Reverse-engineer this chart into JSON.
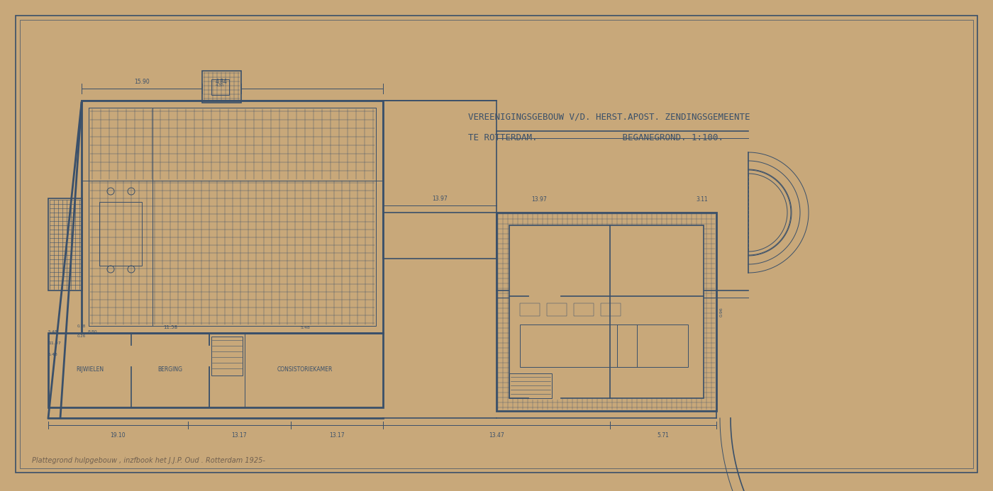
{
  "bg_color": "#c8a87a",
  "line_color": "#4a5f7a",
  "title_line1": "VEREENIGINGSGEBOUW V/D. HERST.APOST. ZENDINGSGEMEENTE",
  "title_line2": "TE ROTTERDAM.                BEGANEGROND. 1:100.",
  "subtitle": "Plattegrond hulpgebouw , inzfbook het J.J.P. Oud . Rotterdam 1925-",
  "draw_color": "#3a506a"
}
